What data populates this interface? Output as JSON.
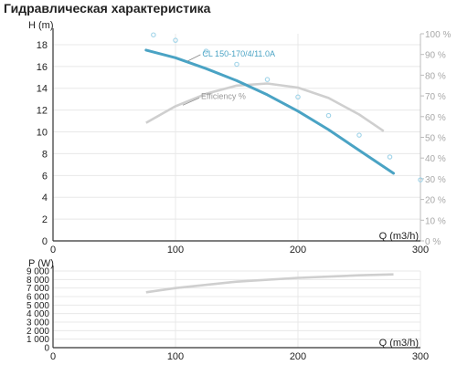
{
  "title": "Гидравлическая характеристика",
  "chart_data": [
    {
      "type": "line",
      "name": "head",
      "xlabel": "Q (m3/h)",
      "ylabel": "H (m)",
      "y2label": "",
      "xlim": [
        0,
        300
      ],
      "ylim": [
        0,
        19
      ],
      "y2lim": [
        0,
        100
      ],
      "x_ticks": [
        "0",
        "100",
        "200",
        "300"
      ],
      "y_ticks": [
        "0",
        "2",
        "4",
        "6",
        "8",
        "10",
        "12",
        "14",
        "16",
        "18"
      ],
      "y2_ticks": [
        "0 %",
        "10 %",
        "20 %",
        "30 %",
        "40 %",
        "50 %",
        "60 %",
        "70 %",
        "80 %",
        "90 %",
        "100 %"
      ],
      "grid": true,
      "colors": {
        "head": "#4aa3c4",
        "efficiency": "#cfcfcf",
        "dotted": "#9fd3e8",
        "axis": "#333333",
        "grid": "#e8e8e8"
      },
      "series": [
        {
          "name": "CL 150-170/4/11.0A",
          "axis": "left",
          "style": "solid",
          "x": [
            76,
            100,
            125,
            150,
            175,
            200,
            225,
            250,
            278
          ],
          "y": [
            17.5,
            16.8,
            15.8,
            14.7,
            13.4,
            11.9,
            10.2,
            8.3,
            6.2
          ]
        },
        {
          "name": "Efficiency %",
          "axis": "right",
          "style": "solid",
          "x": [
            76,
            100,
            125,
            150,
            175,
            200,
            225,
            250,
            270
          ],
          "y": [
            57,
            65,
            71,
            75,
            76,
            74,
            69,
            61,
            53
          ]
        },
        {
          "name": "",
          "axis": "left",
          "style": "dotted",
          "x": [
            82,
            100,
            125,
            150,
            175,
            200,
            225,
            250,
            275,
            300
          ],
          "y": [
            18.9,
            18.4,
            17.4,
            16.2,
            14.8,
            13.2,
            11.5,
            9.7,
            7.7,
            5.6
          ]
        }
      ]
    },
    {
      "type": "line",
      "name": "power",
      "xlabel": "Q (m3/h)",
      "ylabel": "P (W)",
      "xlim": [
        0,
        300
      ],
      "ylim": [
        0,
        9000
      ],
      "x_ticks": [
        "0",
        "100",
        "200",
        "300"
      ],
      "y_ticks": [
        "0",
        "1 000",
        "2 000",
        "3 000",
        "4 000",
        "5 000",
        "6 000",
        "7 000",
        "8 000",
        "9 000"
      ],
      "grid": true,
      "series": [
        {
          "name": "",
          "style": "solid",
          "x": [
            76,
            100,
            150,
            200,
            250,
            278
          ],
          "y": [
            6500,
            7000,
            7750,
            8200,
            8500,
            8600
          ]
        }
      ]
    }
  ]
}
